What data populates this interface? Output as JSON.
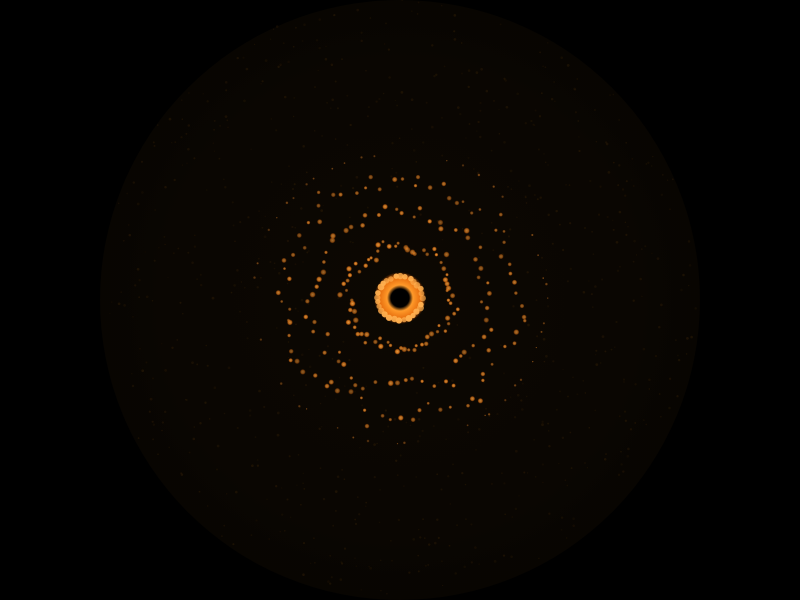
{
  "scene": {
    "background_color": "#000000",
    "halo_color": "#1a1005",
    "particle_color": "#ff8a1e",
    "particle_core_color": "#ffb050",
    "center_hole_color": "#000000",
    "rings": [
      {
        "name": "core",
        "count": 28,
        "brightness": 1.0
      },
      {
        "name": "inner",
        "count": 70,
        "brightness": 0.9
      },
      {
        "name": "middle",
        "count": 60,
        "brightness": 0.85
      },
      {
        "name": "outer",
        "count": 75,
        "brightness": 0.8
      },
      {
        "name": "faint-outer",
        "count": 60,
        "brightness": 0.5
      }
    ],
    "dust_density": 0.5
  }
}
